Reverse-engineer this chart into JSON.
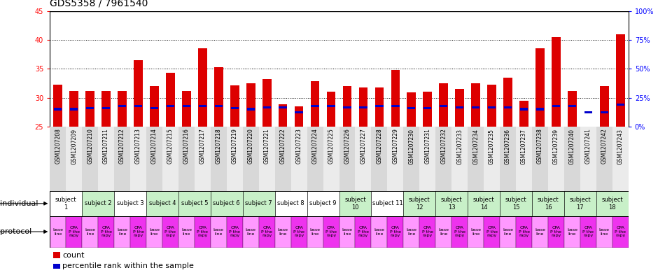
{
  "title": "GDS5358 / 7961540",
  "samples": [
    "GSM1207208",
    "GSM1207209",
    "GSM1207210",
    "GSM1207211",
    "GSM1207212",
    "GSM1207213",
    "GSM1207214",
    "GSM1207215",
    "GSM1207216",
    "GSM1207217",
    "GSM1207218",
    "GSM1207219",
    "GSM1207220",
    "GSM1207221",
    "GSM1207222",
    "GSM1207223",
    "GSM1207224",
    "GSM1207225",
    "GSM1207226",
    "GSM1207227",
    "GSM1207228",
    "GSM1207229",
    "GSM1207230",
    "GSM1207231",
    "GSM1207232",
    "GSM1207233",
    "GSM1207234",
    "GSM1207235",
    "GSM1207236",
    "GSM1207237",
    "GSM1207238",
    "GSM1207239",
    "GSM1207240",
    "GSM1207241",
    "GSM1207242",
    "GSM1207243"
  ],
  "red_values": [
    32.2,
    31.1,
    31.2,
    31.1,
    31.1,
    36.5,
    32.0,
    34.3,
    31.1,
    38.5,
    35.3,
    32.1,
    32.5,
    33.2,
    28.8,
    28.5,
    32.8,
    31.0,
    32.0,
    31.7,
    31.7,
    34.8,
    30.9,
    31.0,
    32.5,
    31.5,
    32.5,
    32.2,
    33.5,
    29.4,
    38.5,
    40.5,
    31.2,
    25.0,
    32.0,
    41.0
  ],
  "blue_values": [
    28.0,
    28.0,
    28.2,
    28.2,
    28.5,
    28.5,
    28.2,
    28.5,
    28.5,
    28.5,
    28.5,
    28.2,
    28.0,
    28.3,
    28.3,
    27.5,
    28.5,
    28.5,
    28.3,
    28.3,
    28.5,
    28.5,
    28.2,
    28.2,
    28.5,
    28.3,
    28.3,
    28.3,
    28.3,
    28.0,
    28.0,
    28.5,
    28.5,
    27.5,
    27.5,
    28.8
  ],
  "ylim_left": [
    25,
    45
  ],
  "ylim_right": [
    0,
    100
  ],
  "yticks_left": [
    25,
    30,
    35,
    40,
    45
  ],
  "yticks_right": [
    0,
    25,
    50,
    75,
    100
  ],
  "ytick_labels_right": [
    "0%",
    "25%",
    "50%",
    "75%",
    "100%"
  ],
  "grid_dotted_at": [
    30,
    35,
    40
  ],
  "subjects": [
    {
      "label": "subject\n1",
      "start": 0,
      "end": 2,
      "color": "#ffffff"
    },
    {
      "label": "subject 2",
      "start": 2,
      "end": 4,
      "color": "#c8f0c8"
    },
    {
      "label": "subject 3",
      "start": 4,
      "end": 6,
      "color": "#ffffff"
    },
    {
      "label": "subject 4",
      "start": 6,
      "end": 8,
      "color": "#c8f0c8"
    },
    {
      "label": "subject 5",
      "start": 8,
      "end": 10,
      "color": "#c8f0c8"
    },
    {
      "label": "subject 6",
      "start": 10,
      "end": 12,
      "color": "#c8f0c8"
    },
    {
      "label": "subject 7",
      "start": 12,
      "end": 14,
      "color": "#c8f0c8"
    },
    {
      "label": "subject 8",
      "start": 14,
      "end": 16,
      "color": "#ffffff"
    },
    {
      "label": "subject 9",
      "start": 16,
      "end": 18,
      "color": "#ffffff"
    },
    {
      "label": "subject\n10",
      "start": 18,
      "end": 20,
      "color": "#c8f0c8"
    },
    {
      "label": "subject 11",
      "start": 20,
      "end": 22,
      "color": "#ffffff"
    },
    {
      "label": "subject\n12",
      "start": 22,
      "end": 24,
      "color": "#c8f0c8"
    },
    {
      "label": "subject\n13",
      "start": 24,
      "end": 26,
      "color": "#c8f0c8"
    },
    {
      "label": "subject\n14",
      "start": 26,
      "end": 28,
      "color": "#c8f0c8"
    },
    {
      "label": "subject\n15",
      "start": 28,
      "end": 30,
      "color": "#c8f0c8"
    },
    {
      "label": "subject\n16",
      "start": 30,
      "end": 32,
      "color": "#c8f0c8"
    },
    {
      "label": "subject\n17",
      "start": 32,
      "end": 34,
      "color": "#c8f0c8"
    },
    {
      "label": "subject\n18",
      "start": 34,
      "end": 36,
      "color": "#c8f0c8"
    }
  ],
  "bar_color_red": "#dd0000",
  "bar_color_blue": "#0000cc",
  "baseline_color": "#ff99ff",
  "therapy_color": "#ee33ee",
  "tick_fontsize": 7,
  "label_fontsize": 8,
  "title_fontsize": 10,
  "gsm_fontsize": 5.5,
  "subj_fontsize": 6,
  "proto_fontsize": 4.5
}
